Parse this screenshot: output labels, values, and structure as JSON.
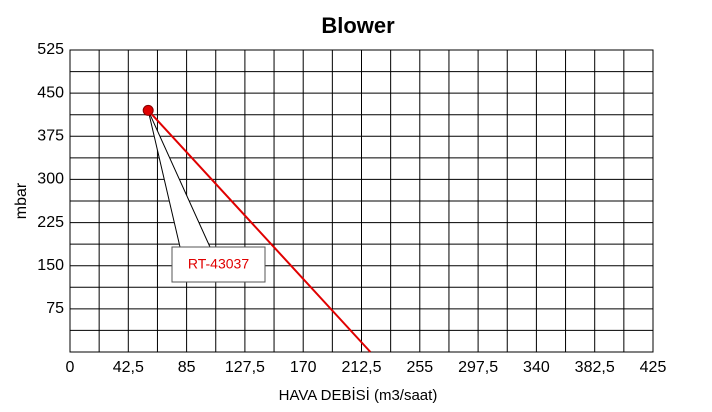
{
  "chart_data": {
    "type": "line",
    "title": "Blower",
    "x_label": "HAVA DEBİSİ (m3/saat)",
    "y_label": "mbar",
    "xlim": [
      0,
      425
    ],
    "ylim": [
      0,
      525
    ],
    "xticks": [
      0,
      {
        "value": 42.5,
        "label": "42,5"
      },
      85,
      {
        "value": 127.5,
        "label": "127,5"
      },
      170,
      {
        "value": 212.5,
        "label": "212,5"
      },
      255,
      {
        "value": 297.5,
        "label": "297,5"
      },
      340,
      {
        "value": 382.5,
        "label": "382,5"
      },
      425
    ],
    "yticks": [
      75,
      150,
      225,
      300,
      375,
      450,
      525
    ],
    "xminorticks": [
      21.25,
      63.75,
      106.25,
      148.75,
      191.25,
      233.75,
      276.25,
      318.75,
      361.25,
      403.75
    ],
    "yminorticks": [
      37.5,
      112.5,
      187.5,
      262.5,
      337.5,
      412.5,
      487.5
    ],
    "grid": true,
    "series": [
      {
        "name": "RT-43037",
        "color": "#e00000",
        "x": [
          57,
          219
        ],
        "values": [
          420,
          0
        ]
      }
    ]
  }
}
